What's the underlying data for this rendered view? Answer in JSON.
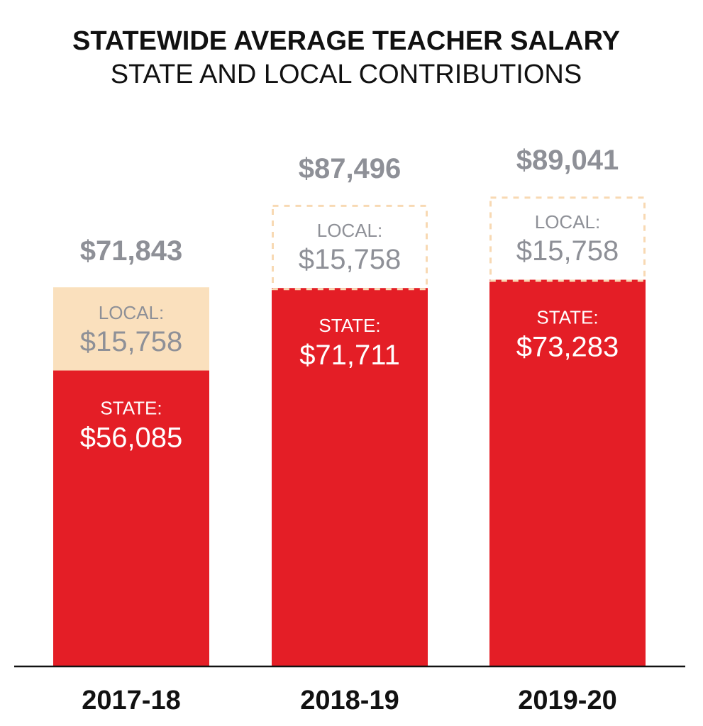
{
  "chart_data": {
    "type": "bar",
    "stacked": true,
    "title": "STATEWIDE AVERAGE TEACHER SALARY",
    "subtitle": "STATE AND LOCAL CONTRIBUTIONS",
    "categories": [
      "2017-18",
      "2018-19",
      "2019-20"
    ],
    "totals": [
      "$71,843",
      "$87,496",
      "$89,041"
    ],
    "total_values": [
      71843,
      87496,
      89041
    ],
    "series": [
      {
        "name": "STATE:",
        "values": [
          56085,
          71711,
          73283
        ],
        "labels": [
          "$56,085",
          "$71,711",
          "$73,283"
        ],
        "color": "#e41e26"
      },
      {
        "name": "LOCAL:",
        "values": [
          15758,
          15758,
          15758
        ],
        "labels": [
          "$15,758",
          "$15,758",
          "$15,758"
        ],
        "color": "#fae0bd",
        "style": [
          "filled",
          "dashed-outline",
          "dashed-outline"
        ]
      }
    ],
    "ylim": [
      0,
      115000
    ],
    "grid": false,
    "legend": "none",
    "xlabel": "",
    "ylabel": ""
  },
  "colors": {
    "state_bar": "#e41e26",
    "local_fill": "#fae0bd",
    "local_outline": "#f8d9b3",
    "label_gray": "#8e9097",
    "state_text": "#ffffff",
    "title_text": "#111111",
    "axis_line": "#111111"
  }
}
